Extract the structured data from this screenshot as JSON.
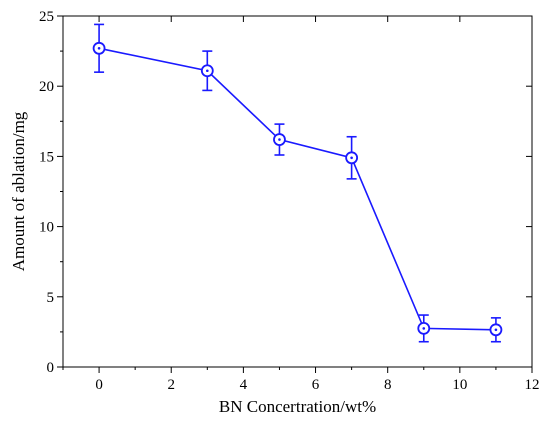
{
  "chart_data": {
    "type": "line",
    "xlabel": "BN Concertration/wt%",
    "ylabel": "Amount of ablation/mg",
    "xlim": [
      -1,
      12
    ],
    "ylim": [
      0,
      25
    ],
    "xticks": [
      0,
      2,
      4,
      6,
      8,
      10,
      12
    ],
    "yticks": [
      0,
      5,
      10,
      15,
      20,
      25
    ],
    "grid": false,
    "series": [
      {
        "x": [
          0,
          3,
          5,
          7,
          9,
          11
        ],
        "y": [
          22.7,
          21.1,
          16.2,
          14.9,
          2.75,
          2.65
        ],
        "yerr": [
          1.7,
          1.4,
          1.1,
          1.5,
          0.95,
          0.85
        ],
        "color": "#1a1aff",
        "marker": "circle-dot"
      }
    ]
  }
}
